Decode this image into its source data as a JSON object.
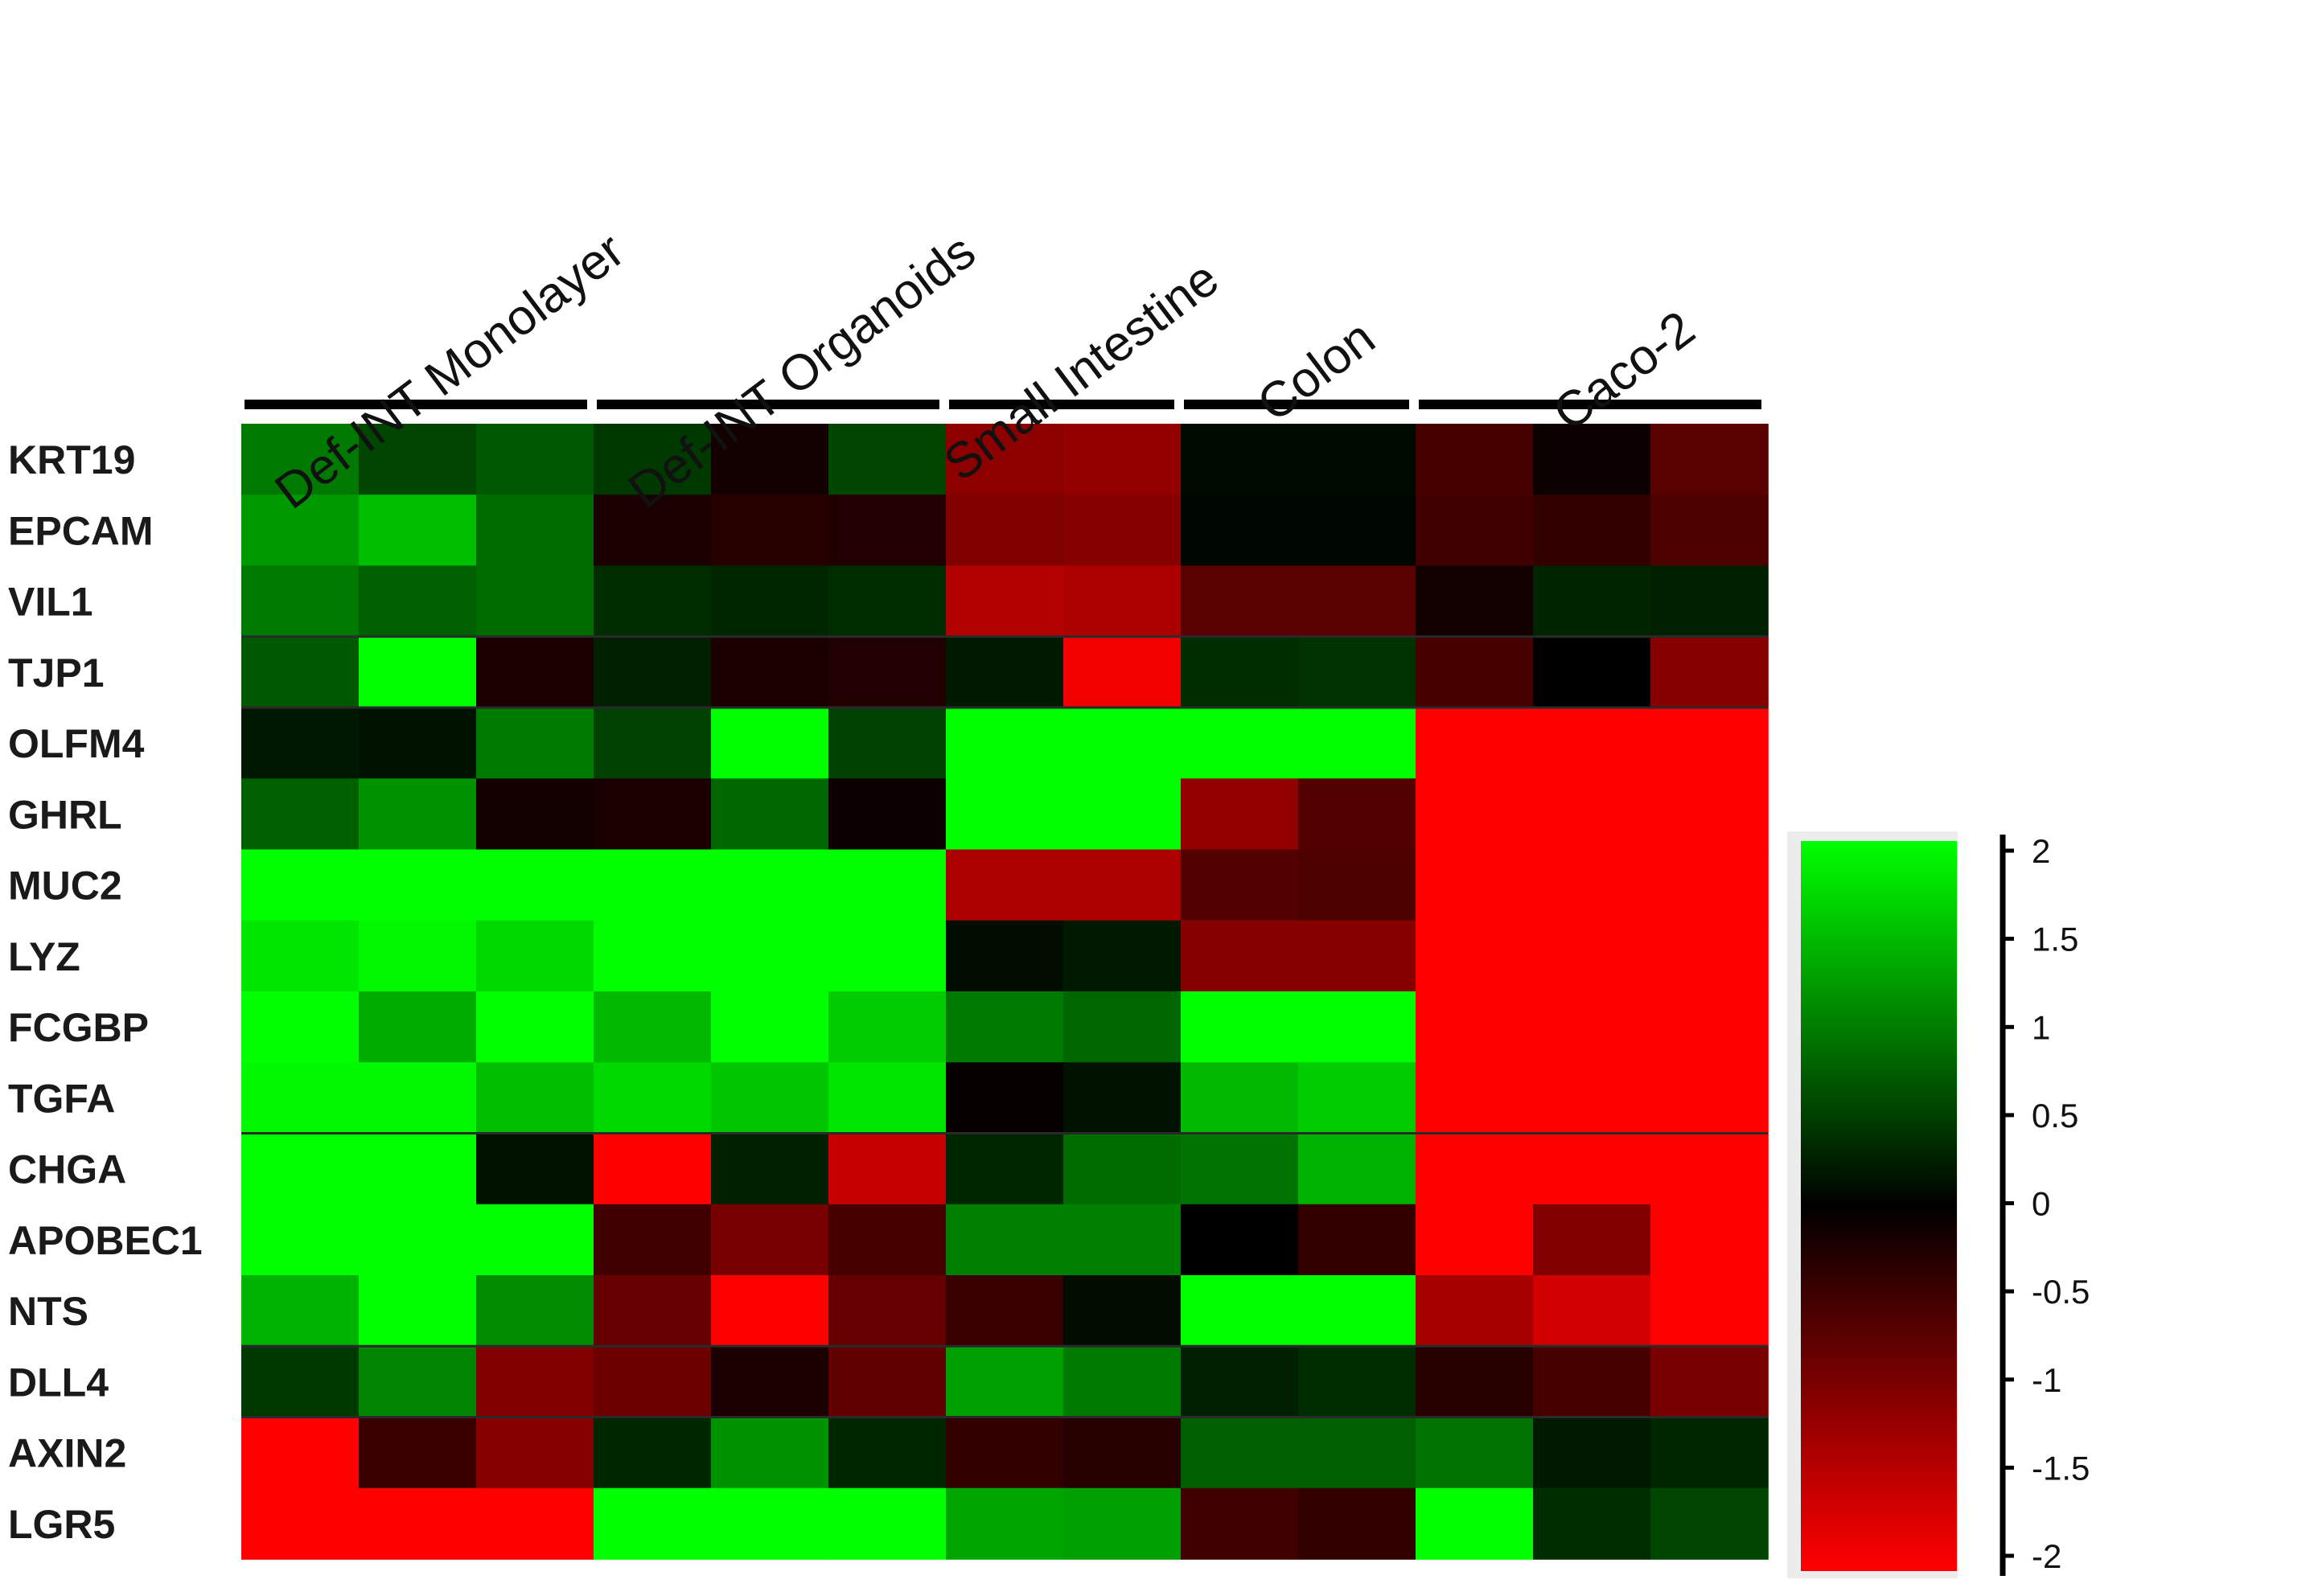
{
  "chart_data": {
    "type": "heatmap",
    "title": "",
    "groups": [
      "Def-INT Monolayer",
      "Def-INT Organoids",
      "Small Intestine",
      "Colon",
      "Caco-2"
    ],
    "group_sizes": [
      3,
      3,
      2,
      2,
      3
    ],
    "rows": [
      "KRT19",
      "EPCAM",
      "VIL1",
      "TJP1",
      "OLFM4",
      "GHRL",
      "MUC2",
      "LYZ",
      "FCGBP",
      "TGFA",
      "CHGA",
      "APOBEC1",
      "NTS",
      "DLL4",
      "AXIN2",
      "LGR5"
    ],
    "row_separators_after": [
      "VIL1",
      "TJP1",
      "TGFA",
      "NTS",
      "DLL4"
    ],
    "values": [
      [
        0.95,
        0.55,
        0.7,
        0.45,
        -0.15,
        0.55,
        -1.1,
        -1.15,
        0.08,
        0.08,
        -0.55,
        -0.1,
        -0.7
      ],
      [
        1.2,
        1.5,
        0.85,
        -0.2,
        -0.3,
        -0.25,
        -1.0,
        -1.05,
        0.05,
        0.05,
        -0.5,
        -0.4,
        -0.6
      ],
      [
        0.95,
        0.75,
        0.85,
        0.35,
        0.3,
        0.35,
        -1.4,
        -1.35,
        -0.7,
        -0.7,
        -0.15,
        0.28,
        0.25
      ],
      [
        0.7,
        2.0,
        -0.2,
        0.25,
        -0.2,
        -0.25,
        0.2,
        -1.9,
        0.35,
        0.4,
        -0.55,
        0.0,
        -1.05
      ],
      [
        0.18,
        0.15,
        0.95,
        0.5,
        2.1,
        0.5,
        2.1,
        2.1,
        2.1,
        2.1,
        -2.1,
        -2.1,
        -2.1
      ],
      [
        0.75,
        1.15,
        -0.15,
        -0.2,
        0.8,
        -0.1,
        2.1,
        2.1,
        -1.15,
        -0.65,
        -2.0,
        -2.1,
        -2.1
      ],
      [
        2.1,
        2.1,
        2.1,
        2.1,
        2.1,
        2.1,
        -1.35,
        -1.35,
        -0.65,
        -0.6,
        -2.1,
        -2.1,
        -2.1
      ],
      [
        1.8,
        1.95,
        1.7,
        2.1,
        2.1,
        2.1,
        0.1,
        0.2,
        -1.05,
        -1.05,
        -2.1,
        -2.1,
        -2.1
      ],
      [
        2.0,
        1.35,
        2.0,
        1.45,
        2.05,
        1.6,
        0.95,
        0.8,
        2.0,
        2.0,
        -2.1,
        -2.1,
        -2.1
      ],
      [
        1.95,
        1.95,
        1.5,
        1.7,
        1.55,
        1.8,
        -0.05,
        0.15,
        1.45,
        1.6,
        -2.1,
        -2.1,
        -2.1
      ],
      [
        2.0,
        2.0,
        0.15,
        -2.0,
        0.25,
        -1.55,
        0.3,
        0.85,
        0.9,
        1.4,
        -2.05,
        -2.05,
        -2.05
      ],
      [
        2.0,
        2.0,
        2.0,
        -0.5,
        -0.95,
        -0.55,
        1.0,
        1.0,
        0.0,
        -0.4,
        -2.05,
        -1.0,
        -2.05
      ],
      [
        1.4,
        2.0,
        1.1,
        -0.8,
        -2.0,
        -0.8,
        -0.45,
        0.1,
        2.05,
        2.05,
        -1.3,
        -1.65,
        -2.05
      ],
      [
        0.45,
        1.05,
        -1.0,
        -0.85,
        -0.2,
        -0.75,
        1.25,
        0.95,
        0.25,
        0.35,
        -0.3,
        -0.55,
        -0.95
      ],
      [
        -2.1,
        -0.45,
        -1.05,
        0.3,
        1.15,
        0.3,
        -0.4,
        -0.3,
        0.75,
        0.75,
        0.9,
        0.2,
        0.3
      ],
      [
        -2.1,
        -2.1,
        -2.1,
        2.1,
        2.1,
        2.1,
        1.3,
        1.25,
        -0.5,
        -0.4,
        2.1,
        0.35,
        0.55
      ]
    ],
    "colorbar": {
      "range": [
        -2,
        2
      ],
      "colors": [
        "#ff0000",
        "#000000",
        "#00ff00"
      ],
      "ticks": [
        "2",
        "1.5",
        "1",
        "0.5",
        "0",
        "-0.5",
        "-1",
        "-1.5",
        "-2"
      ],
      "tick_values": [
        2,
        1.5,
        1,
        0.5,
        0,
        -0.5,
        -1,
        -1.5,
        -2
      ]
    }
  }
}
